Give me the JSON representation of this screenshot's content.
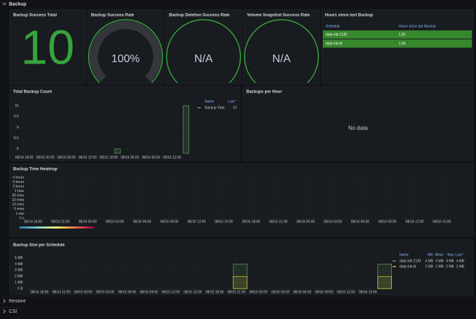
{
  "header": {
    "title": "Backup"
  },
  "stats": [
    {
      "title": "Backup Success Total",
      "value": 10
    },
    {
      "title": "Backup Success Rate",
      "value": 100,
      "value_label": "100%",
      "max": 100
    },
    {
      "title": "Backup Deletion Success Rate",
      "value_label": "N/A"
    },
    {
      "title": "Volume Snapshot Success Rate",
      "value_label": "N/A"
    }
  ],
  "table": {
    "title": "Hours since last Backup",
    "columns": [
      "Schedule",
      "Hours since last Backup"
    ],
    "rows": [
      [
        "daily-full-2130",
        "1.95"
      ],
      [
        "daily-full-ttt",
        "1.94"
      ]
    ]
  },
  "count_chart": {
    "type": "bar",
    "title": "Total Backup Count",
    "ylim": [
      7.8,
      10.1
    ],
    "yticks": [
      10,
      9.5,
      9,
      8.5,
      8
    ],
    "xlim": [
      -1,
      48
    ],
    "xticks": [
      {
        "value": 0,
        "label": "08/14 18:00"
      },
      {
        "value": 6,
        "label": "08/15 00:00"
      },
      {
        "value": 12,
        "label": "08/15 06:00"
      },
      {
        "value": 18,
        "label": "08/15 12:00"
      },
      {
        "value": 24,
        "label": "08/15 18:00"
      },
      {
        "value": 30,
        "label": "08/16 00:00"
      },
      {
        "value": 36,
        "label": "08/16 06:00"
      },
      {
        "value": 42,
        "label": "08/16 12:00"
      }
    ],
    "series": [
      {
        "name": "Backup Total",
        "color": "#73bf69",
        "x": [
          26.5,
          46
        ],
        "values": [
          8,
          10
        ],
        "last": "10"
      }
    ],
    "legend_columns": [
      "Name",
      "Last *"
    ]
  },
  "hourly": {
    "title": "Backups per Hour",
    "message": "No data"
  },
  "heatmap": {
    "type": "heatmap",
    "title": "Backup Time Heatmap",
    "yticks": [
      "4 hours",
      "3 hours",
      "2 hours",
      "1 hour",
      "30 mins",
      "15 mins",
      "10 mins",
      "5 mins",
      "1 min",
      "0 s"
    ],
    "xticks": [
      "08/14 18:00",
      "08/14 21:00",
      "08/15 00:00",
      "08/15 03:00",
      "08/15 06:00",
      "08/15 09:00",
      "08/15 12:00",
      "08/15 15:00",
      "08/15 18:00",
      "08/15 21:00",
      "08/16 00:00",
      "08/16 03:00",
      "08/16 06:00",
      "08/16 09:00",
      "08/16 12:00",
      "08/16 15:00"
    ]
  },
  "size_chart": {
    "type": "bar",
    "title": "Backup Size per Schedule",
    "ylim": [
      0,
      5.3
    ],
    "yticks": [
      {
        "value": 5,
        "label": "5 MB"
      },
      {
        "value": 4,
        "label": "4 MB"
      },
      {
        "value": 3,
        "label": "3 MB"
      },
      {
        "value": 2,
        "label": "2 MB"
      },
      {
        "value": 1,
        "label": "1 MB"
      },
      {
        "value": 0,
        "label": "0 B"
      }
    ],
    "xlim": [
      -2,
      48
    ],
    "xticks": [
      {
        "value": 0,
        "label": "08/14 18:00"
      },
      {
        "value": 3,
        "label": "08/14 21:00"
      },
      {
        "value": 6,
        "label": "08/15 00:00"
      },
      {
        "value": 9,
        "label": "08/15 03:00"
      },
      {
        "value": 12,
        "label": "08/15 06:00"
      },
      {
        "value": 15,
        "label": "08/15 09:00"
      },
      {
        "value": 18,
        "label": "08/15 12:00"
      },
      {
        "value": 21,
        "label": "08/15 15:00"
      },
      {
        "value": 24,
        "label": "08/15 18:00"
      },
      {
        "value": 27,
        "label": "08/15 21:00"
      },
      {
        "value": 30,
        "label": "08/16 00:00"
      },
      {
        "value": 33,
        "label": "08/16 03:00"
      },
      {
        "value": 36,
        "label": "08/16 06:00"
      },
      {
        "value": 39,
        "label": "08/16 09:00"
      },
      {
        "value": 42,
        "label": "08/16 12:00"
      },
      {
        "value": 45,
        "label": "08/16 15:00"
      }
    ],
    "series": [
      {
        "name": "daily-full-2130",
        "color": "#73bf69",
        "x": [
          27.5,
          47.3
        ],
        "values": [
          4,
          4
        ],
        "stats": [
          "4 MB",
          "4 MB",
          "4 MB",
          "4 MB"
        ]
      },
      {
        "name": "daily-full-ttt",
        "color": "#fade2a",
        "x": [
          27.5,
          47.3
        ],
        "values": [
          2,
          2
        ],
        "stats": [
          "2 MB",
          "2 MB",
          "2 MB",
          "2 MB"
        ]
      }
    ],
    "legend_columns": [
      "Name",
      "Min",
      "Mean",
      "Max",
      "Last *"
    ]
  },
  "sections": [
    "Restore",
    "CSI"
  ]
}
